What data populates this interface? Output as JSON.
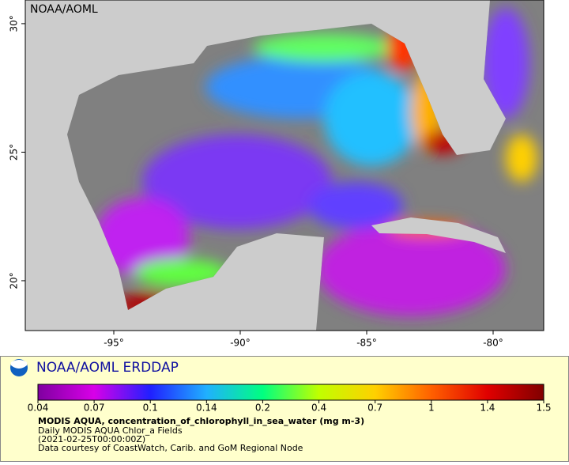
{
  "map": {
    "corner_label": "NOAA/AOML",
    "xlim": [
      -98.5,
      -78.0
    ],
    "ylim": [
      18.06,
      30.92
    ],
    "xticks": [
      {
        "value": -95,
        "label": "-95°"
      },
      {
        "value": -90,
        "label": "-90°"
      },
      {
        "value": -85,
        "label": "-85°"
      },
      {
        "value": -80,
        "label": "-80°"
      }
    ],
    "yticks": [
      {
        "value": 20,
        "label": "20°"
      },
      {
        "value": 25,
        "label": "25°"
      },
      {
        "value": 30,
        "label": "30°"
      }
    ]
  },
  "legend": {
    "title": "NOAA/AOML ERDDAP",
    "colorbar": {
      "scale": "log",
      "ticks": [
        0.04,
        0.07,
        0.1,
        0.14,
        0.2,
        0.4,
        0.7,
        1,
        1.4,
        1.5
      ],
      "colors": [
        "#7f00a0",
        "#d800e8",
        "#2020ff",
        "#20b0ff",
        "#00ff80",
        "#c0ff00",
        "#ffd000",
        "#ff6000",
        "#e00000",
        "#800000"
      ]
    },
    "variable": "MODIS AQUA, concentration_of_chlorophyll_in_sea_water (mg m-3)",
    "lines": [
      "Daily MODIS AQUA Chlor_a Fields",
      "(2021-02-25T00:00:00Z)",
      "Data courtesy of CoastWatch, Carib. and GoM Regional Node"
    ]
  }
}
